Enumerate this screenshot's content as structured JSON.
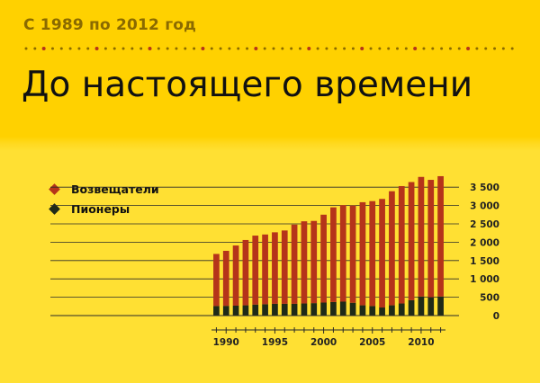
{
  "header": {
    "subtitle": "С 1989 по 2012 год",
    "title": "До настоящего времени"
  },
  "colors": {
    "background_top": "#FFD100",
    "background_bottom": "#FFE033",
    "announcers": "#B5341A",
    "pioneers": "#1F2A18",
    "dots_dark": "#8A6A00",
    "dots_red": "#B5341A"
  },
  "chart_data": {
    "type": "bar",
    "stacked": true,
    "x": [
      1989,
      1990,
      1991,
      1992,
      1993,
      1994,
      1995,
      1996,
      1997,
      1998,
      1999,
      2000,
      2001,
      2002,
      2003,
      2004,
      2005,
      2006,
      2007,
      2008,
      2009,
      2010,
      2011,
      2012
    ],
    "x_tick_labels": [
      "1990",
      "1995",
      "2000",
      "2005",
      "2010"
    ],
    "y_tick_labels": [
      "0",
      "500",
      "1 000",
      "1 500",
      "2 000",
      "2 500",
      "3 000",
      "3 500"
    ],
    "ylim": [
      0,
      3750
    ],
    "y_axis_position": "right",
    "grid": true,
    "legend_position": "left",
    "series": [
      {
        "name": "Пионеры",
        "color": "#1F2A18",
        "values": [
          260,
          265,
          270,
          280,
          300,
          310,
          320,
          320,
          320,
          330,
          340,
          355,
          370,
          380,
          350,
          280,
          260,
          220,
          280,
          330,
          420,
          520,
          500,
          520
        ]
      },
      {
        "name": "Возвещатели",
        "color": "#B5341A",
        "values": [
          1420,
          1500,
          1640,
          1780,
          1880,
          1900,
          1950,
          2000,
          2160,
          2240,
          2240,
          2395,
          2580,
          2630,
          2650,
          2810,
          2860,
          2960,
          3110,
          3200,
          3220,
          3260,
          3200,
          3280
        ]
      }
    ]
  }
}
